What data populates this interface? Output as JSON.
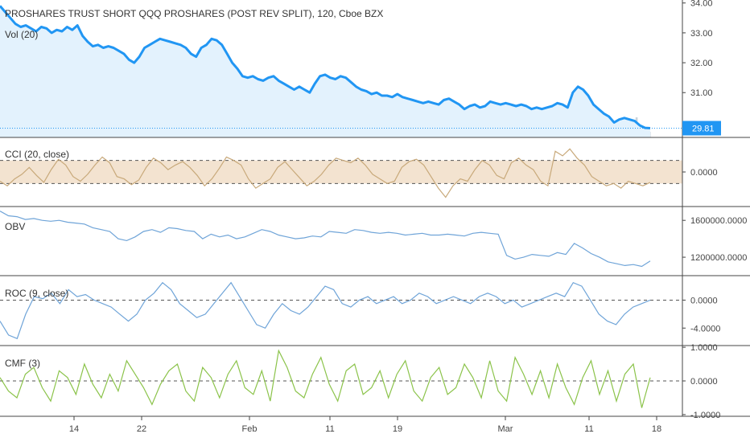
{
  "header": {
    "title": "PROSHARES TRUST SHORT QQQ PROSHARES (POST REV SPLIT), 120, Cboe BZX",
    "vol_label": "Vol (20)"
  },
  "colors": {
    "price_line": "#2196f3",
    "price_fill": "#e3f2fd",
    "volume": "#c8d3dc",
    "cci_line": "#c8a97a",
    "cci_band": "#f3e3d0",
    "obv_line": "#6fa4d8",
    "roc_line": "#6fa4d8",
    "cmf_line": "#8bc34a",
    "divider": "#444444",
    "dashed": "#555555"
  },
  "chart_data": [
    {
      "id": "price",
      "type": "line",
      "title": "PROSHARES TRUST SHORT QQQ PROSHARES (POST REV SPLIT), 120, Cboe BZX",
      "ylim": [
        29.5,
        34.1
      ],
      "ticks": [
        "34.00",
        "33.00",
        "32.00",
        "31.00"
      ],
      "last_value": "29.81",
      "values": [
        33.9,
        33.7,
        33.5,
        33.3,
        33.2,
        33.25,
        33.15,
        33.05,
        33.2,
        33.15,
        33.0,
        33.1,
        33.05,
        33.2,
        33.1,
        33.25,
        32.9,
        32.7,
        32.55,
        32.6,
        32.5,
        32.55,
        32.5,
        32.4,
        32.3,
        32.1,
        32.0,
        32.2,
        32.5,
        32.6,
        32.7,
        32.8,
        32.75,
        32.7,
        32.65,
        32.6,
        32.5,
        32.3,
        32.2,
        32.5,
        32.6,
        32.8,
        32.75,
        32.6,
        32.3,
        32.0,
        31.8,
        31.55,
        31.5,
        31.55,
        31.45,
        31.4,
        31.5,
        31.55,
        31.4,
        31.3,
        31.2,
        31.1,
        31.2,
        31.1,
        31.0,
        31.3,
        31.55,
        31.6,
        31.5,
        31.45,
        31.55,
        31.5,
        31.35,
        31.2,
        31.1,
        31.05,
        30.95,
        31.0,
        30.9,
        30.9,
        30.85,
        30.95,
        30.85,
        30.8,
        30.75,
        30.7,
        30.65,
        30.7,
        30.65,
        30.6,
        30.75,
        30.8,
        30.7,
        30.6,
        30.45,
        30.55,
        30.6,
        30.5,
        30.55,
        30.7,
        30.65,
        30.6,
        30.65,
        30.6,
        30.55,
        30.6,
        30.55,
        30.45,
        30.5,
        30.45,
        30.5,
        30.55,
        30.65,
        30.6,
        30.5,
        31.0,
        31.2,
        31.1,
        30.9,
        30.6,
        30.45,
        30.3,
        30.2,
        30.0,
        30.1,
        30.15,
        30.1,
        30.05,
        29.9,
        29.82,
        29.81
      ]
    },
    {
      "id": "cci",
      "type": "line",
      "title": "CCI (20, close)",
      "ylim": [
        -300,
        300
      ],
      "band": [
        -100,
        100
      ],
      "ticks": [
        "0.0000"
      ],
      "values": [
        -80,
        -120,
        -60,
        -20,
        40,
        -30,
        -90,
        20,
        110,
        60,
        -40,
        -80,
        -20,
        60,
        130,
        80,
        -40,
        -60,
        -110,
        -70,
        40,
        120,
        80,
        20,
        60,
        90,
        40,
        -30,
        -120,
        -60,
        30,
        130,
        100,
        60,
        -60,
        -140,
        -100,
        -60,
        40,
        90,
        20,
        -50,
        -120,
        -80,
        -20,
        60,
        120,
        100,
        80,
        120,
        60,
        -20,
        -60,
        -100,
        -80,
        40,
        90,
        110,
        60,
        -40,
        -140,
        -220,
        -120,
        -60,
        -80,
        20,
        100,
        60,
        -30,
        -60,
        80,
        120,
        60,
        20,
        -80,
        -120,
        180,
        140,
        200,
        120,
        60,
        -40,
        -80,
        -120,
        -100,
        -140,
        -80,
        -100,
        -120,
        -90
      ]
    },
    {
      "id": "obv",
      "type": "line",
      "title": "OBV",
      "ylim": [
        1000000,
        1750000
      ],
      "ticks": [
        "1600000.0000",
        "1200000.0000"
      ],
      "values": [
        1700000,
        1650000,
        1640000,
        1610000,
        1620000,
        1600000,
        1590000,
        1600000,
        1580000,
        1570000,
        1560000,
        1520000,
        1500000,
        1480000,
        1400000,
        1380000,
        1420000,
        1480000,
        1500000,
        1470000,
        1520000,
        1510000,
        1490000,
        1480000,
        1400000,
        1450000,
        1420000,
        1440000,
        1400000,
        1420000,
        1460000,
        1500000,
        1480000,
        1440000,
        1420000,
        1400000,
        1410000,
        1430000,
        1420000,
        1480000,
        1470000,
        1460000,
        1500000,
        1490000,
        1470000,
        1460000,
        1470000,
        1460000,
        1440000,
        1450000,
        1460000,
        1440000,
        1440000,
        1450000,
        1440000,
        1430000,
        1460000,
        1470000,
        1460000,
        1450000,
        1220000,
        1180000,
        1200000,
        1230000,
        1220000,
        1210000,
        1250000,
        1230000,
        1350000,
        1300000,
        1240000,
        1200000,
        1150000,
        1130000,
        1110000,
        1120000,
        1100000,
        1160000
      ]
    },
    {
      "id": "roc",
      "type": "line",
      "title": "ROC (9, close)",
      "ylim": [
        -6.5,
        3.5
      ],
      "ticks": [
        "0.0000",
        "-4.0000"
      ],
      "values": [
        -3,
        -5,
        -5.5,
        -2,
        0.5,
        0.2,
        1,
        -0.5,
        1.5,
        0.5,
        0.8,
        0,
        -0.5,
        -1,
        -2,
        -3,
        -2,
        0,
        1,
        2.5,
        1.5,
        -0.5,
        -1.5,
        -2.5,
        -2,
        -0.5,
        1,
        2.5,
        0.5,
        -1.5,
        -3.5,
        -4,
        -2,
        -0.5,
        -1.5,
        -2,
        -1,
        0.5,
        2,
        1.5,
        -0.5,
        -1,
        0,
        0.5,
        -0.5,
        0,
        0.5,
        -0.5,
        0,
        1,
        0.5,
        -0.5,
        0,
        0.5,
        0,
        -0.5,
        0.5,
        1,
        0.5,
        -0.5,
        0,
        -1,
        -0.5,
        0,
        0.5,
        1,
        0.5,
        2.5,
        2,
        0,
        -2,
        -3,
        -3.5,
        -2,
        -1,
        -0.5,
        0
      ]
    },
    {
      "id": "cmf",
      "type": "line",
      "title": "CMF (3)",
      "ylim": [
        -1.05,
        1.05
      ],
      "ticks": [
        "1.0000",
        "0.0000",
        "-1.0000"
      ],
      "values": [
        0.1,
        -0.3,
        -0.5,
        0.2,
        0.4,
        -0.2,
        -0.6,
        0.3,
        0.1,
        -0.4,
        0.5,
        -0.1,
        -0.5,
        0.2,
        -0.3,
        0.6,
        0.2,
        -0.2,
        -0.7,
        -0.1,
        0.3,
        0.5,
        -0.3,
        -0.6,
        0.4,
        0.1,
        -0.5,
        0.2,
        0.6,
        -0.2,
        -0.4,
        0.3,
        -0.6,
        0.9,
        0.4,
        -0.3,
        -0.5,
        0.2,
        0.7,
        -0.1,
        -0.6,
        0.3,
        0.5,
        -0.4,
        -0.2,
        0.3,
        -0.5,
        0.2,
        0.6,
        -0.3,
        -0.6,
        0.1,
        0.4,
        -0.4,
        -0.2,
        0.5,
        0.1,
        -0.5,
        0.6,
        -0.3,
        -0.6,
        0.7,
        0.2,
        -0.4,
        0.3,
        -0.5,
        0.5,
        -0.2,
        -0.7,
        0.1,
        0.6,
        -0.4,
        0.3,
        -0.6,
        0.2,
        0.5,
        -0.8,
        0.1
      ]
    }
  ],
  "x_axis": {
    "labels": [
      "14",
      "22",
      "Feb",
      "11",
      "19",
      "Mar",
      "11",
      "18"
    ]
  }
}
